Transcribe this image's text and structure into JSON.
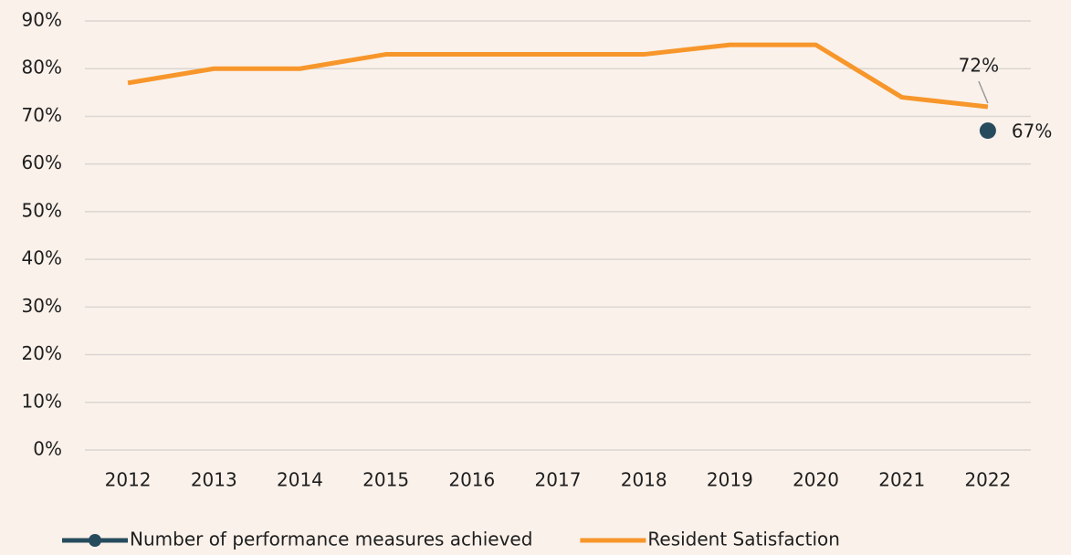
{
  "chart_data": {
    "type": "line",
    "categories": [
      "2012",
      "2013",
      "2014",
      "2015",
      "2016",
      "2017",
      "2018",
      "2019",
      "2020",
      "2021",
      "2022"
    ],
    "series": [
      {
        "name": "Number of performance measures achieved",
        "color": "#264b5d",
        "values": [
          null,
          null,
          null,
          null,
          null,
          null,
          null,
          null,
          null,
          null,
          67
        ],
        "value_labels": [
          null,
          null,
          null,
          null,
          null,
          null,
          null,
          null,
          null,
          null,
          "67%"
        ]
      },
      {
        "name": "Resident Satisfaction",
        "color": "#f7962a",
        "values": [
          77,
          80,
          80,
          83,
          83,
          83,
          83,
          85,
          85,
          74,
          72
        ],
        "value_labels": [
          null,
          null,
          null,
          null,
          null,
          null,
          null,
          null,
          null,
          null,
          "72%"
        ]
      }
    ],
    "ylim": [
      0,
      90
    ],
    "yticks": [
      {
        "value": 0,
        "label": "0%"
      },
      {
        "value": 10,
        "label": "10%"
      },
      {
        "value": 20,
        "label": "20%"
      },
      {
        "value": 30,
        "label": "30%"
      },
      {
        "value": 40,
        "label": "40%"
      },
      {
        "value": 50,
        "label": "50%"
      },
      {
        "value": 60,
        "label": "60%"
      },
      {
        "value": 70,
        "label": "70%"
      },
      {
        "value": 80,
        "label": "80%"
      },
      {
        "value": 90,
        "label": "90%"
      }
    ],
    "grid": true,
    "legend": "bottom"
  }
}
